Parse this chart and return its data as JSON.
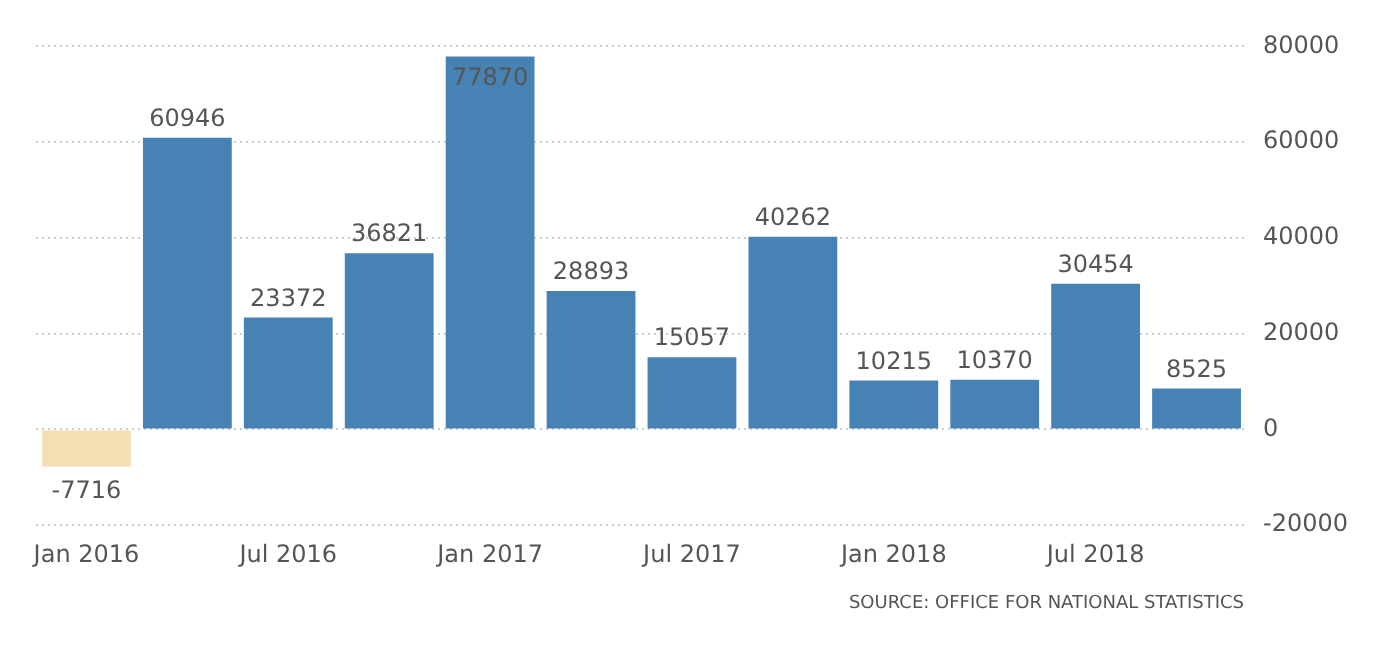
{
  "chart_data": {
    "type": "bar",
    "categories": [
      "Jan 2016",
      null,
      "Jul 2016",
      null,
      "Jan 2017",
      null,
      "Jul 2017",
      null,
      "Jan 2018",
      null,
      "Jul 2018",
      null
    ],
    "values": [
      -7716,
      60946,
      23372,
      36821,
      77870,
      28893,
      15057,
      40262,
      10215,
      10370,
      30454,
      8525
    ],
    "colors": [
      "#f5deb3",
      "#4682b4",
      "#4682b4",
      "#4682b4",
      "#4682b4",
      "#4682b4",
      "#4682b4",
      "#4682b4",
      "#4682b4",
      "#4682b4",
      "#4682b4",
      "#4682b4"
    ],
    "ylim": [
      -20000,
      80000
    ],
    "yticks": [
      -20000,
      0,
      20000,
      40000,
      60000,
      80000
    ],
    "grid": "y",
    "legend": false,
    "data_labels": true,
    "annotations": [
      "SOURCE: OFFICE FOR NATIONAL STATISTICS"
    ]
  }
}
